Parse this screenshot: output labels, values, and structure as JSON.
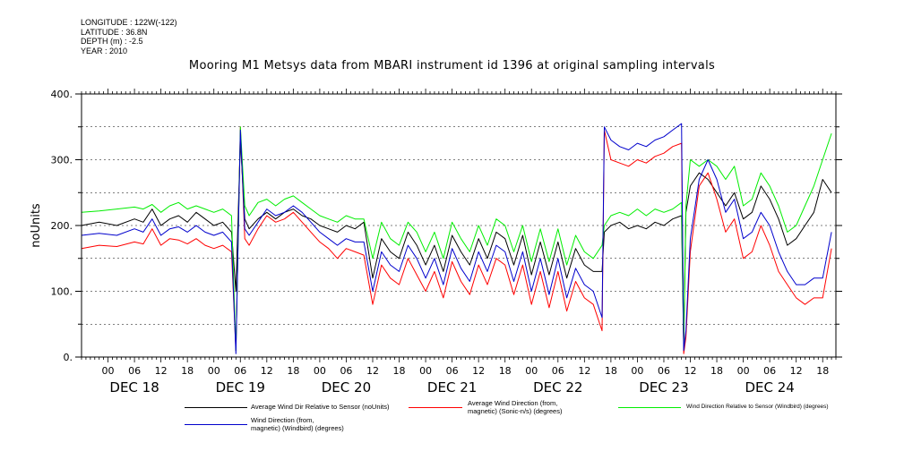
{
  "metadata": {
    "longitude": "LONGITUDE : 122W(-122)",
    "latitude": "LATITUDE : 36.8N",
    "depth": "DEPTH (m) : -2.5",
    "year": "YEAR : 2010"
  },
  "chart_data": {
    "type": "line",
    "title": "Mooring M1 Metsys data from MBARI instrument id 1396 at original sampling intervals",
    "ylabel": "noUnits",
    "xlabel": "",
    "ylim": [
      0,
      400
    ],
    "yticks": [
      "0.",
      "100.",
      "200.",
      "300.",
      "400."
    ],
    "x_unit": "hours since Dec 17 2010 18:00",
    "xlim": [
      0,
      171
    ],
    "x_hour_ticks": [
      {
        "x": 6,
        "label": "00"
      },
      {
        "x": 12,
        "label": "06"
      },
      {
        "x": 18,
        "label": "12"
      },
      {
        "x": 24,
        "label": "18"
      },
      {
        "x": 30,
        "label": "00"
      },
      {
        "x": 36,
        "label": "06"
      },
      {
        "x": 42,
        "label": "12"
      },
      {
        "x": 48,
        "label": "18"
      },
      {
        "x": 54,
        "label": "00"
      },
      {
        "x": 60,
        "label": "06"
      },
      {
        "x": 66,
        "label": "12"
      },
      {
        "x": 72,
        "label": "18"
      },
      {
        "x": 78,
        "label": "00"
      },
      {
        "x": 84,
        "label": "06"
      },
      {
        "x": 90,
        "label": "12"
      },
      {
        "x": 96,
        "label": "18"
      },
      {
        "x": 102,
        "label": "00"
      },
      {
        "x": 108,
        "label": "06"
      },
      {
        "x": 114,
        "label": "12"
      },
      {
        "x": 120,
        "label": "18"
      },
      {
        "x": 126,
        "label": "00"
      },
      {
        "x": 132,
        "label": "06"
      },
      {
        "x": 138,
        "label": "12"
      },
      {
        "x": 144,
        "label": "18"
      },
      {
        "x": 150,
        "label": "00"
      },
      {
        "x": 156,
        "label": "06"
      },
      {
        "x": 162,
        "label": "12"
      },
      {
        "x": 168,
        "label": "18"
      }
    ],
    "x_day_labels": [
      {
        "x": 12,
        "label": "DEC 18"
      },
      {
        "x": 36,
        "label": "DEC 19"
      },
      {
        "x": 60,
        "label": "DEC 20"
      },
      {
        "x": 84,
        "label": "DEC 21"
      },
      {
        "x": 108,
        "label": "DEC 22"
      },
      {
        "x": 132,
        "label": "DEC 23"
      },
      {
        "x": 156,
        "label": "DEC 24"
      }
    ],
    "series": [
      {
        "name": "Average Wind Dir Relative to Sensor (noUnits)",
        "color": "#000000",
        "x": [
          0,
          4,
          8,
          12,
          14,
          16,
          18,
          20,
          22,
          24,
          26,
          28,
          30,
          32,
          34,
          35,
          36,
          37,
          38,
          40,
          42,
          44,
          46,
          48,
          50,
          52,
          54,
          56,
          58,
          60,
          62,
          64,
          66,
          68,
          70,
          72,
          74,
          76,
          78,
          80,
          82,
          84,
          86,
          88,
          90,
          92,
          94,
          96,
          98,
          100,
          102,
          104,
          106,
          108,
          110,
          112,
          114,
          116,
          118,
          118.5,
          120,
          122,
          124,
          126,
          128,
          130,
          132,
          134,
          136,
          136.5,
          137,
          138,
          140,
          142,
          144,
          146,
          148,
          150,
          152,
          154,
          156,
          158,
          160,
          162,
          164,
          166,
          168,
          170
        ],
        "y": [
          200,
          205,
          200,
          210,
          205,
          225,
          200,
          210,
          215,
          205,
          220,
          210,
          200,
          205,
          190,
          100,
          330,
          210,
          195,
          210,
          220,
          210,
          220,
          225,
          215,
          210,
          200,
          195,
          190,
          200,
          195,
          205,
          120,
          180,
          160,
          150,
          190,
          170,
          140,
          170,
          130,
          185,
          160,
          140,
          180,
          150,
          190,
          180,
          140,
          185,
          125,
          175,
          125,
          175,
          120,
          165,
          140,
          130,
          130,
          190,
          200,
          205,
          195,
          200,
          195,
          205,
          200,
          210,
          215,
          15,
          220,
          260,
          280,
          270,
          250,
          230,
          250,
          210,
          220,
          260,
          240,
          210,
          170,
          180,
          200,
          220,
          270,
          250
        ]
      },
      {
        "name": "Average Wind Direction (from, magnetic) (Sonic-n/s) (degrees)",
        "color": "#ff0000",
        "x": [
          0,
          4,
          8,
          12,
          14,
          16,
          18,
          20,
          22,
          24,
          26,
          28,
          30,
          32,
          34,
          35,
          36,
          37,
          38,
          40,
          42,
          44,
          46,
          48,
          50,
          52,
          54,
          56,
          58,
          60,
          62,
          64,
          66,
          68,
          70,
          72,
          74,
          76,
          78,
          80,
          82,
          84,
          86,
          88,
          90,
          92,
          94,
          96,
          98,
          100,
          102,
          104,
          106,
          108,
          110,
          112,
          114,
          116,
          118,
          118.5,
          120,
          122,
          124,
          126,
          128,
          130,
          132,
          134,
          136,
          136.5,
          137,
          138,
          140,
          142,
          144,
          146,
          148,
          150,
          152,
          154,
          156,
          158,
          160,
          162,
          164,
          166,
          168,
          170
        ],
        "y": [
          165,
          170,
          168,
          175,
          172,
          195,
          170,
          180,
          178,
          172,
          180,
          170,
          165,
          170,
          160,
          10,
          350,
          180,
          170,
          195,
          215,
          205,
          210,
          220,
          205,
          190,
          175,
          165,
          150,
          165,
          160,
          155,
          80,
          140,
          120,
          110,
          150,
          125,
          100,
          130,
          90,
          145,
          115,
          95,
          140,
          110,
          150,
          140,
          95,
          140,
          80,
          130,
          75,
          130,
          70,
          115,
          90,
          80,
          40,
          345,
          300,
          295,
          290,
          300,
          295,
          305,
          310,
          320,
          325,
          5,
          30,
          160,
          260,
          280,
          240,
          190,
          210,
          150,
          160,
          200,
          170,
          130,
          110,
          90,
          80,
          90,
          90,
          165
        ]
      },
      {
        "name": "Wind Direction Relative to Sensor (Windbird) (degrees)",
        "color": "#00ee00",
        "x": [
          0,
          4,
          8,
          12,
          14,
          16,
          18,
          20,
          22,
          24,
          26,
          28,
          30,
          32,
          34,
          35,
          36,
          37,
          38,
          40,
          42,
          44,
          46,
          48,
          50,
          52,
          54,
          56,
          58,
          60,
          62,
          64,
          66,
          68,
          70,
          72,
          74,
          76,
          78,
          80,
          82,
          84,
          86,
          88,
          90,
          92,
          94,
          96,
          98,
          100,
          102,
          104,
          106,
          108,
          110,
          112,
          114,
          116,
          118,
          118.5,
          120,
          122,
          124,
          126,
          128,
          130,
          132,
          134,
          136,
          136.5,
          137,
          138,
          140,
          142,
          144,
          146,
          148,
          150,
          152,
          154,
          156,
          158,
          160,
          162,
          164,
          166,
          168,
          170
        ],
        "y": [
          220,
          222,
          225,
          228,
          225,
          232,
          220,
          230,
          235,
          225,
          230,
          225,
          220,
          225,
          215,
          10,
          350,
          230,
          215,
          235,
          240,
          230,
          240,
          245,
          235,
          225,
          215,
          210,
          205,
          215,
          210,
          210,
          150,
          205,
          180,
          170,
          205,
          190,
          160,
          190,
          150,
          205,
          180,
          160,
          200,
          170,
          210,
          200,
          160,
          200,
          145,
          195,
          145,
          195,
          140,
          185,
          160,
          150,
          170,
          200,
          215,
          220,
          215,
          225,
          215,
          225,
          220,
          225,
          235,
          20,
          230,
          300,
          290,
          300,
          290,
          270,
          290,
          230,
          240,
          280,
          260,
          230,
          190,
          200,
          230,
          260,
          300,
          340
        ]
      },
      {
        "name": "Wind Direction (from, magnetic) (Windbird) (degrees)",
        "color": "#0000cc",
        "x": [
          0,
          4,
          8,
          12,
          14,
          16,
          18,
          20,
          22,
          24,
          26,
          28,
          30,
          32,
          34,
          35,
          36,
          37,
          38,
          40,
          42,
          44,
          46,
          48,
          50,
          52,
          54,
          56,
          58,
          60,
          62,
          64,
          66,
          68,
          70,
          72,
          74,
          76,
          78,
          80,
          82,
          84,
          86,
          88,
          90,
          92,
          94,
          96,
          98,
          100,
          102,
          104,
          106,
          108,
          110,
          112,
          114,
          116,
          118,
          118.5,
          120,
          122,
          124,
          126,
          128,
          130,
          132,
          134,
          136,
          136.5,
          137,
          138,
          140,
          142,
          144,
          146,
          148,
          150,
          152,
          154,
          156,
          158,
          160,
          162,
          164,
          166,
          168,
          170
        ],
        "y": [
          185,
          188,
          185,
          195,
          190,
          210,
          185,
          195,
          198,
          190,
          200,
          190,
          185,
          190,
          175,
          5,
          345,
          195,
          185,
          205,
          225,
          215,
          220,
          230,
          220,
          205,
          190,
          180,
          170,
          180,
          175,
          175,
          100,
          160,
          140,
          130,
          170,
          150,
          120,
          150,
          110,
          165,
          135,
          115,
          160,
          130,
          170,
          160,
          115,
          160,
          100,
          150,
          95,
          150,
          90,
          135,
          110,
          100,
          60,
          350,
          330,
          320,
          315,
          325,
          320,
          330,
          335,
          345,
          355,
          10,
          40,
          180,
          270,
          300,
          270,
          220,
          240,
          180,
          190,
          220,
          200,
          160,
          130,
          110,
          110,
          120,
          120,
          190
        ]
      }
    ],
    "legend": {
      "placement": "bottom",
      "entries": [
        {
          "label": "Average Wind Dir Relative to Sensor (noUnits)",
          "color": "#000000"
        },
        {
          "label": "Average Wind Direction (from,\n magnetic) (Sonic-n/s) (degrees)",
          "color": "#ff0000"
        },
        {
          "label": "Wind Direction Relative to Sensor (Windbird) (degrees)",
          "color": "#00ee00"
        },
        {
          "label": "Wind Direction (from,\n magnetic) (Windbird) (degrees)",
          "color": "#0000cc"
        }
      ]
    }
  }
}
